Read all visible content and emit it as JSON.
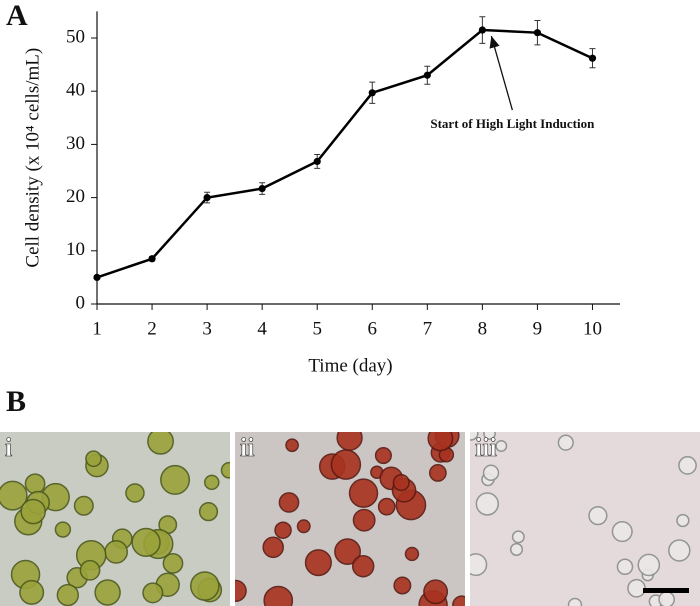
{
  "panel_labels": [
    "A",
    "B"
  ],
  "micrographs": [
    {
      "label": "i"
    },
    {
      "label": "ii"
    },
    {
      "label": "iii"
    }
  ],
  "chart_data": {
    "type": "line",
    "x_label": "Time (day)",
    "y_label": "Cell density (x 10⁴ cells/mL)",
    "x": [
      1,
      2,
      3,
      4,
      5,
      6,
      7,
      8,
      9,
      10
    ],
    "series": [
      {
        "color": "#000000",
        "values": [
          5,
          8.5,
          20,
          21.7,
          26.8,
          39.7,
          43,
          51.5,
          51,
          46.2
        ],
        "errors": [
          0.3,
          0.4,
          1,
          1.1,
          1.3,
          2,
          1.7,
          2.5,
          2.3,
          1.8
        ]
      }
    ],
    "xlim": [
      1,
      10.5
    ],
    "xticks": [
      1,
      2,
      3,
      4,
      5,
      6,
      7,
      8,
      9,
      10
    ],
    "ylim": [
      0,
      55
    ],
    "yticks": [
      0,
      10,
      20,
      30,
      40,
      50
    ],
    "annotations": [
      {
        "text": "Start of High Light Induction",
        "x": 8,
        "y": 51.5
      }
    ]
  }
}
